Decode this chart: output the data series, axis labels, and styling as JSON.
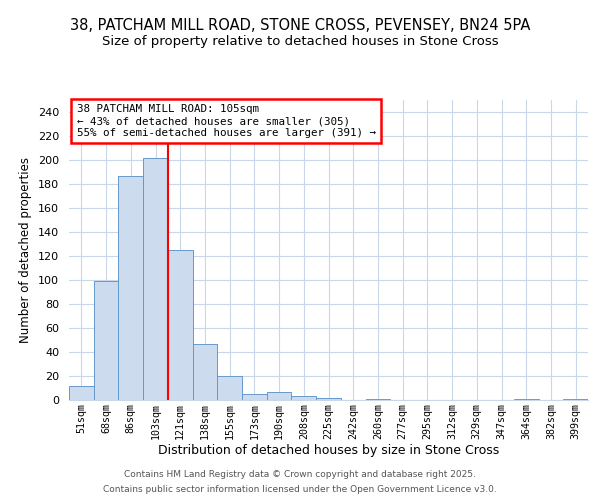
{
  "title_line1": "38, PATCHAM MILL ROAD, STONE CROSS, PEVENSEY, BN24 5PA",
  "title_line2": "Size of property relative to detached houses in Stone Cross",
  "xlabel": "Distribution of detached houses by size in Stone Cross",
  "ylabel": "Number of detached properties",
  "categories": [
    "51sqm",
    "68sqm",
    "86sqm",
    "103sqm",
    "121sqm",
    "138sqm",
    "155sqm",
    "173sqm",
    "190sqm",
    "208sqm",
    "225sqm",
    "242sqm",
    "260sqm",
    "277sqm",
    "295sqm",
    "312sqm",
    "329sqm",
    "347sqm",
    "364sqm",
    "382sqm",
    "399sqm"
  ],
  "values": [
    12,
    99,
    187,
    202,
    125,
    47,
    20,
    5,
    7,
    3,
    2,
    0,
    1,
    0,
    0,
    0,
    0,
    0,
    1,
    0,
    1
  ],
  "bar_color": "#ccdcee",
  "bar_edge_color": "#6699cc",
  "red_line_index": 3,
  "annotation_line1": "38 PATCHAM MILL ROAD: 105sqm",
  "annotation_line2": "← 43% of detached houses are smaller (305)",
  "annotation_line3": "55% of semi-detached houses are larger (391) →",
  "ylim": [
    0,
    250
  ],
  "yticks": [
    0,
    20,
    40,
    60,
    80,
    100,
    120,
    140,
    160,
    180,
    200,
    220,
    240
  ],
  "background_color": "#ffffff",
  "plot_bg_color": "#ffffff",
  "grid_color": "#c8d8e8",
  "footer_line1": "Contains HM Land Registry data © Crown copyright and database right 2025.",
  "footer_line2": "Contains public sector information licensed under the Open Government Licence v3.0.",
  "title_fontsize": 10.5,
  "subtitle_fontsize": 9.5
}
